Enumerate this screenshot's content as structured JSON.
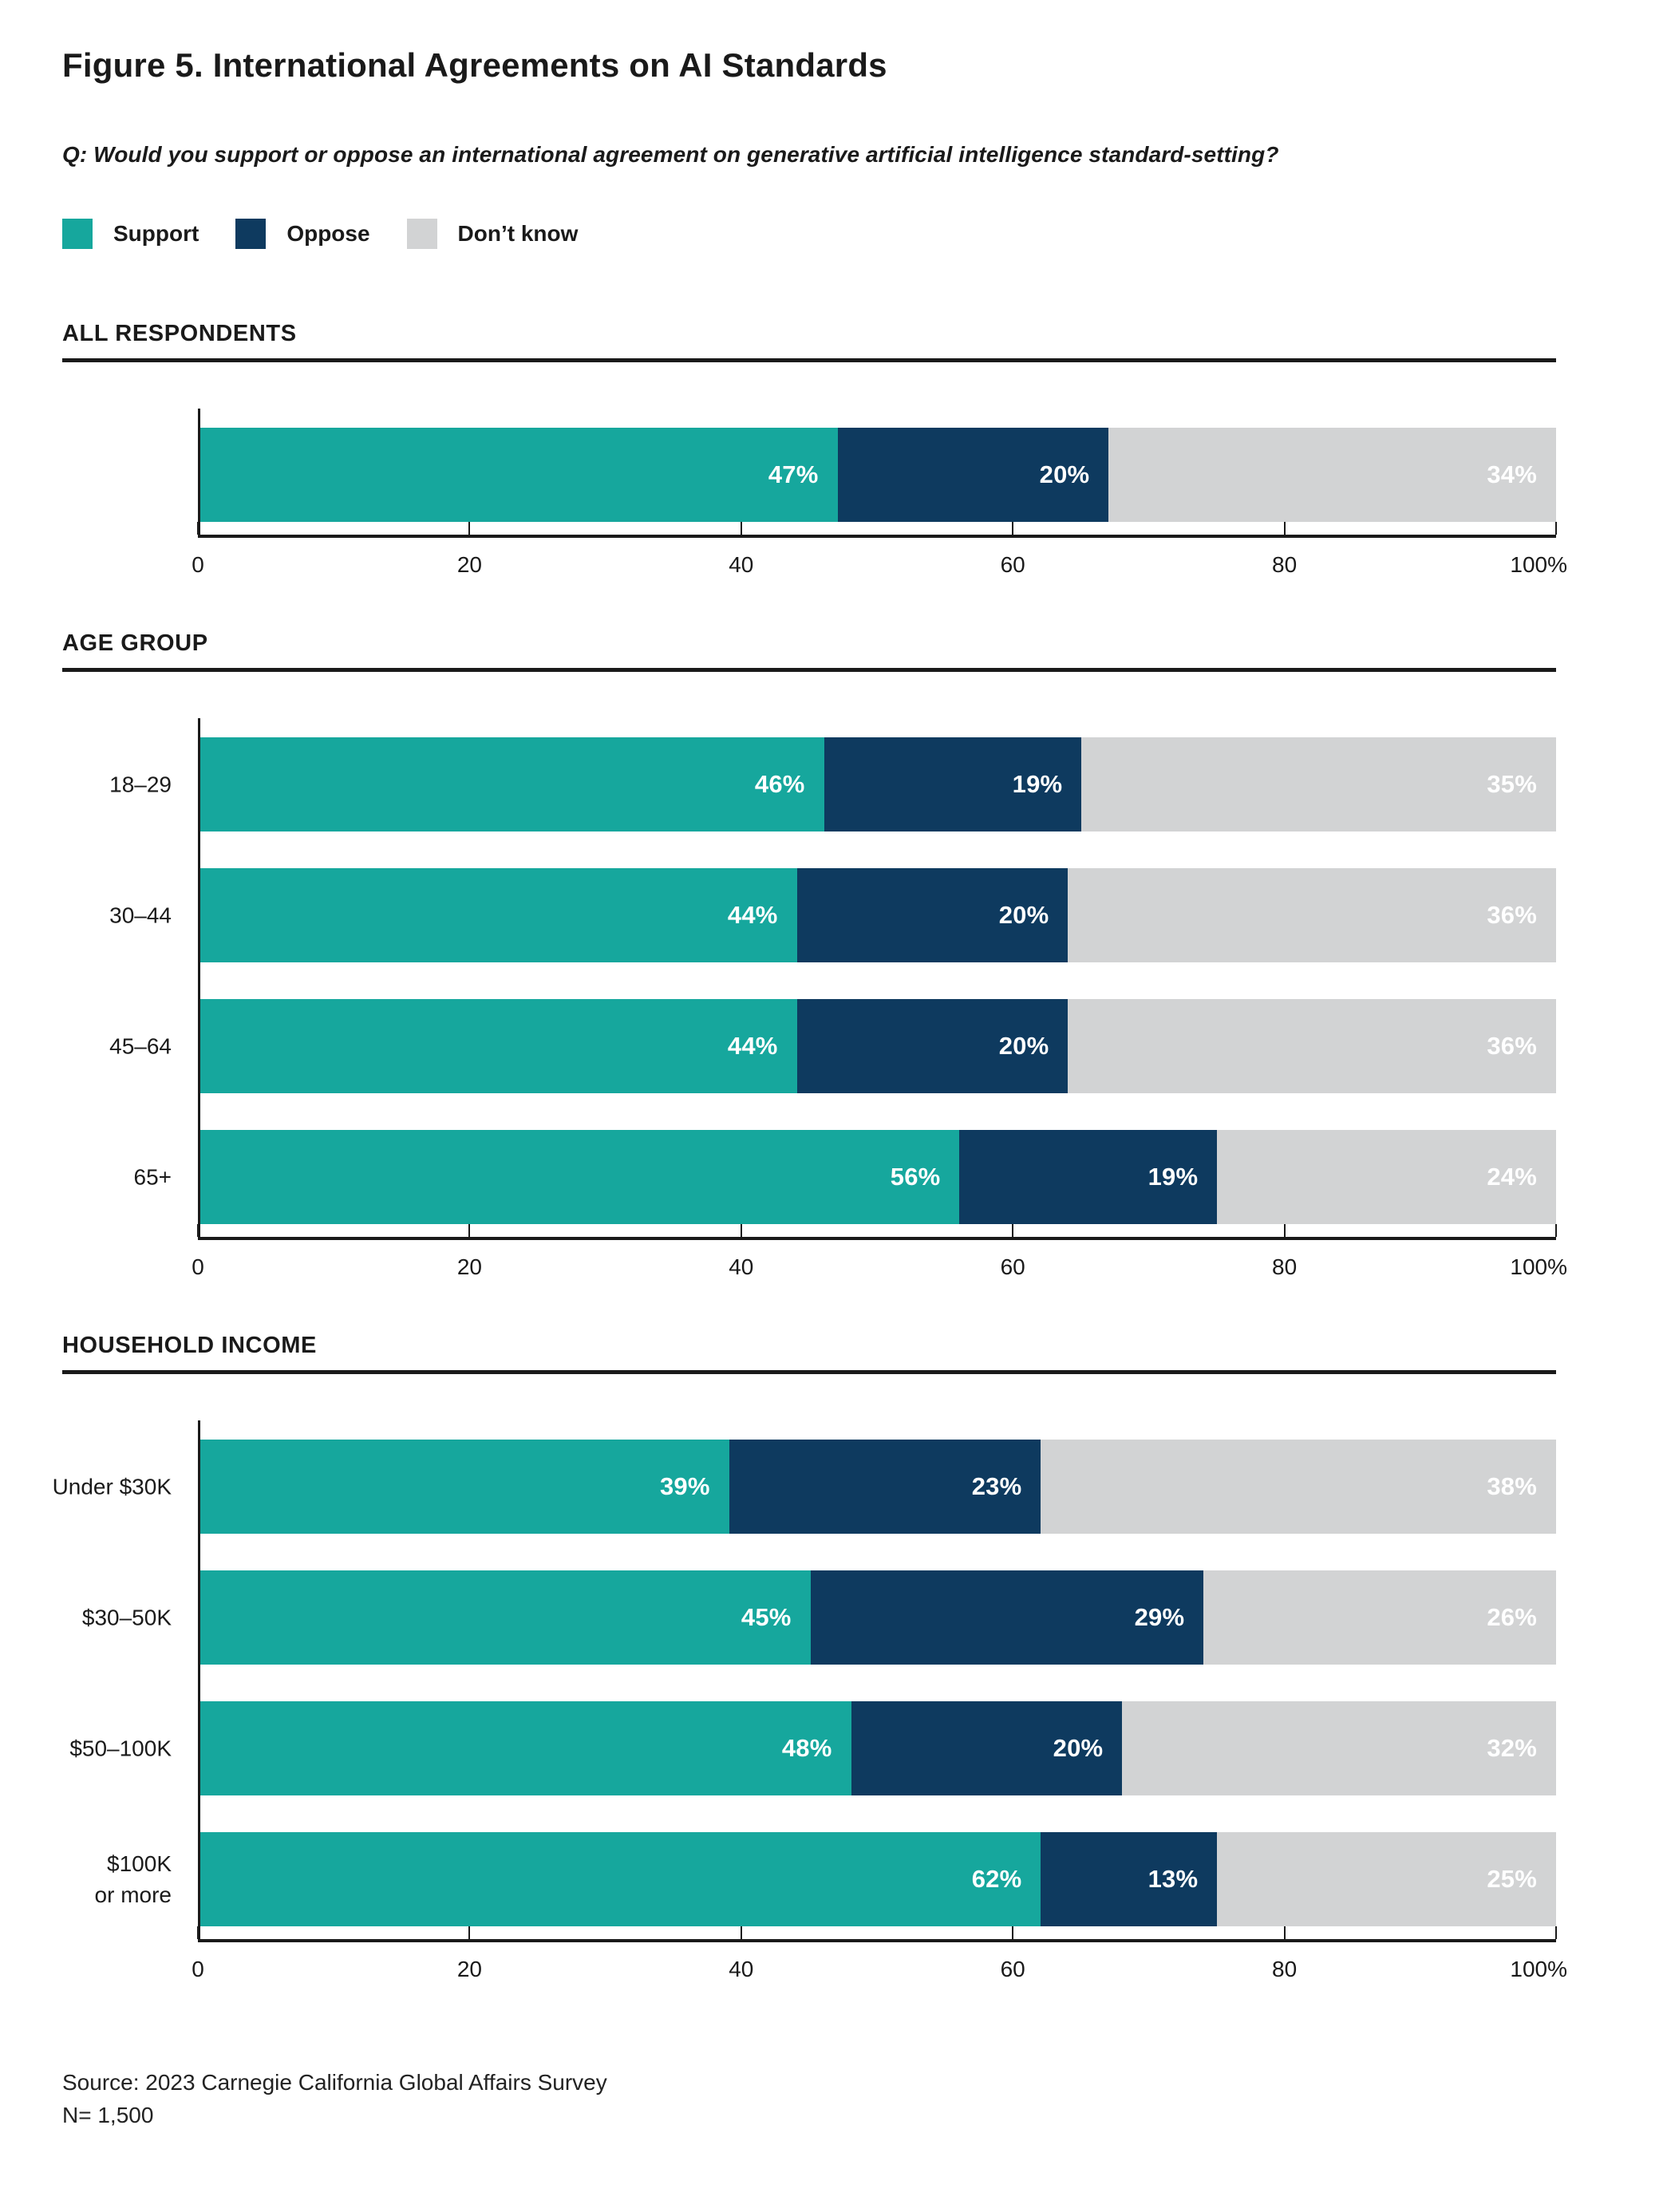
{
  "figure": {
    "title": "Figure 5. International Agreements on AI Standards",
    "question": "Q: Would you support or oppose an international agreement on generative artificial intelligence standard-setting?",
    "source": "Source: 2023 Carnegie California Global Affairs Survey",
    "sample_size": "N= 1,500"
  },
  "legend": {
    "items": [
      {
        "label": "Support",
        "color": "#16A79D"
      },
      {
        "label": "Oppose",
        "color": "#0E3A5F"
      },
      {
        "label": "Don’t know",
        "color": "#D2D3D4"
      }
    ]
  },
  "chart_data": {
    "type": "bar",
    "orientation": "horizontal-stacked",
    "unit": "%",
    "xlim": [
      0,
      100
    ],
    "axis_ticks": [
      "0",
      "20",
      "40",
      "60",
      "80",
      "100%"
    ],
    "axis_tick_positions": [
      0,
      20,
      40,
      60,
      80,
      100
    ],
    "series_names": [
      "Support",
      "Oppose",
      "Don’t know"
    ],
    "colors": {
      "support": "#16A79D",
      "oppose": "#0E3A5F",
      "dont_know": "#D2D3D4",
      "axis": "#1a1a1a"
    },
    "sections": [
      {
        "heading": "ALL RESPONDENTS",
        "rows": [
          {
            "label": "",
            "values": [
              47,
              20,
              34
            ]
          }
        ]
      },
      {
        "heading": "AGE GROUP",
        "rows": [
          {
            "label": "18–29",
            "values": [
              46,
              19,
              35
            ]
          },
          {
            "label": "30–44",
            "values": [
              44,
              20,
              36
            ]
          },
          {
            "label": "45–64",
            "values": [
              44,
              20,
              36
            ]
          },
          {
            "label": "65+",
            "values": [
              56,
              19,
              24
            ]
          }
        ]
      },
      {
        "heading": "HOUSEHOLD INCOME",
        "rows": [
          {
            "label": "Under $30K",
            "values": [
              39,
              23,
              38
            ]
          },
          {
            "label": "$30–50K",
            "values": [
              45,
              29,
              26
            ]
          },
          {
            "label": "$50–100K",
            "values": [
              48,
              20,
              32
            ]
          },
          {
            "label": "$100K\nor more",
            "values": [
              62,
              13,
              25
            ]
          }
        ]
      }
    ]
  }
}
